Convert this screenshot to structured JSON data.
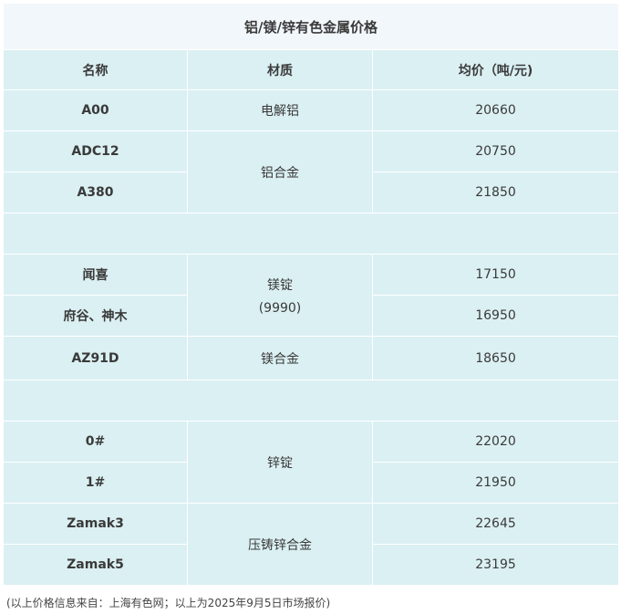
{
  "title": "铝/镁/锌有色金属价格",
  "headers": [
    "名称",
    "材质",
    "均价（吨/元)"
  ],
  "rows": [
    {
      "name": "A00",
      "material": "电解铝",
      "price": "20660"
    },
    {
      "name": "ADC12",
      "material": "铝合金",
      "price": "20750"
    },
    {
      "name": "A380",
      "material": "铝合金",
      "price": "21850"
    },
    {
      "name": "闻喜",
      "material": "镁锭\n(9990)",
      "price": "17150"
    },
    {
      "name": "府谷、神木",
      "material": "镁锭\n(9990)",
      "price": "16950"
    },
    {
      "name": "AZ91D",
      "material": "镁合金",
      "price": "18650"
    },
    {
      "name": "0#",
      "material": "锌锭",
      "price": "22020"
    },
    {
      "name": "1#",
      "material": "锌锭",
      "price": "21950"
    },
    {
      "name": "Zamak3",
      "material": "压铸锌合金",
      "price": "22645"
    },
    {
      "name": "Zamak5",
      "material": "压铸锌合金",
      "price": "23195"
    }
  ],
  "materials": {
    "m0": "电解铝",
    "m1": "铝合金",
    "m2a": "镁锭",
    "m2b": "(9990)",
    "m3": "镁合金",
    "m4": "锌锭",
    "m5": "压铸锌合金"
  },
  "footnote": "(以上价格信息来自：上海有色网；以上为2025年9月5日市场报价)",
  "colors": {
    "cell_bg": "#dbf0f3",
    "title_bg": "#f2f7fb"
  }
}
